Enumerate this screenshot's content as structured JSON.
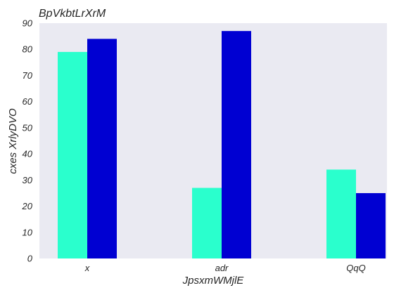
{
  "chart_data": {
    "type": "bar",
    "title": "BpVkbtLrXrM",
    "xlabel": "JpsxmWMjlE",
    "ylabel": "cxes XrlyDVO",
    "categories": [
      "x",
      "adr",
      "QqQ"
    ],
    "series": [
      {
        "values": [
          79,
          27,
          34
        ],
        "color": "#2affcd"
      },
      {
        "values": [
          84,
          87,
          25
        ],
        "color": "#0000d2"
      }
    ],
    "ylim": [
      0,
      90
    ],
    "yticks": [
      0,
      10,
      20,
      30,
      40,
      50,
      60,
      70,
      80,
      90
    ],
    "grid": false,
    "plot_background": "#eaeaf2"
  }
}
